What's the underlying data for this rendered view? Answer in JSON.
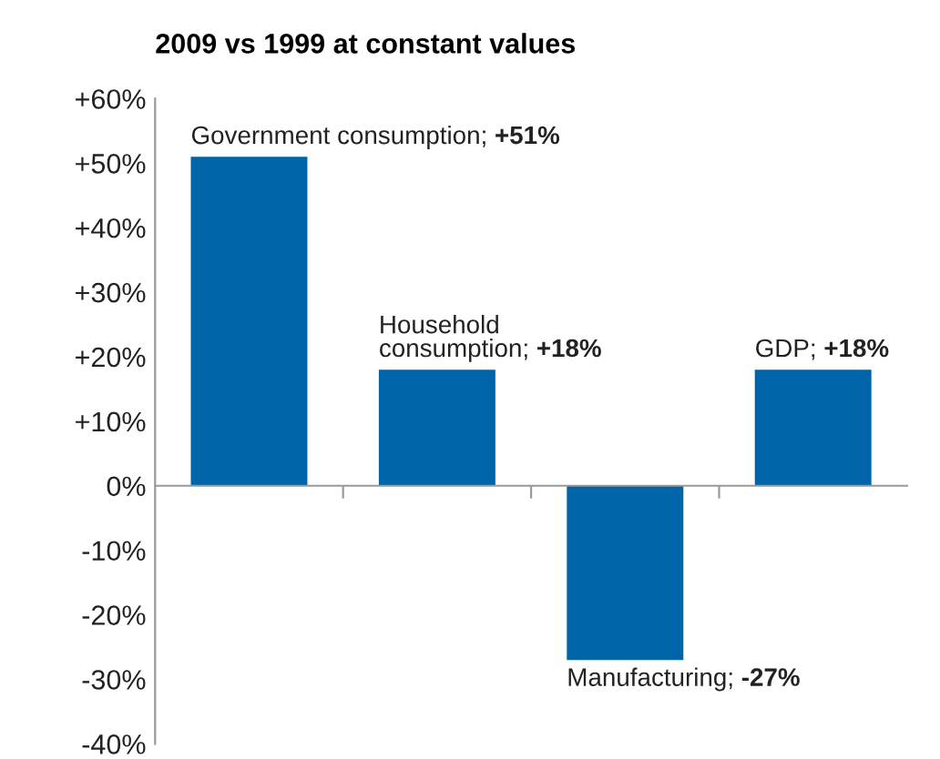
{
  "chart_data": {
    "type": "bar",
    "title": "2009 vs 1999 at constant values",
    "categories": [
      null,
      null,
      null,
      null
    ],
    "values": [
      51,
      18,
      -27,
      18
    ],
    "annotations": [
      "Government consumption; +51%",
      "Household\nconsumption; +18%",
      "Manufacturing; -27%",
      "GDP; +18%"
    ],
    "color": "#0065a8",
    "ylim": [
      -40,
      60
    ],
    "yticks": [
      {
        "value": 60,
        "label": "+60%"
      },
      {
        "value": 50,
        "label": "+50%"
      },
      {
        "value": 40,
        "label": "+40%"
      },
      {
        "value": 30,
        "label": "+30%"
      },
      {
        "value": 20,
        "label": "+20%"
      },
      {
        "value": 10,
        "label": "+10%"
      },
      {
        "value": 0,
        "label": "0%"
      },
      {
        "value": -10,
        "label": "-10%"
      },
      {
        "value": -20,
        "label": "-20%"
      },
      {
        "value": -30,
        "label": "-30%"
      },
      {
        "value": -40,
        "label": "-40%"
      }
    ],
    "tick_labels": "y"
  }
}
